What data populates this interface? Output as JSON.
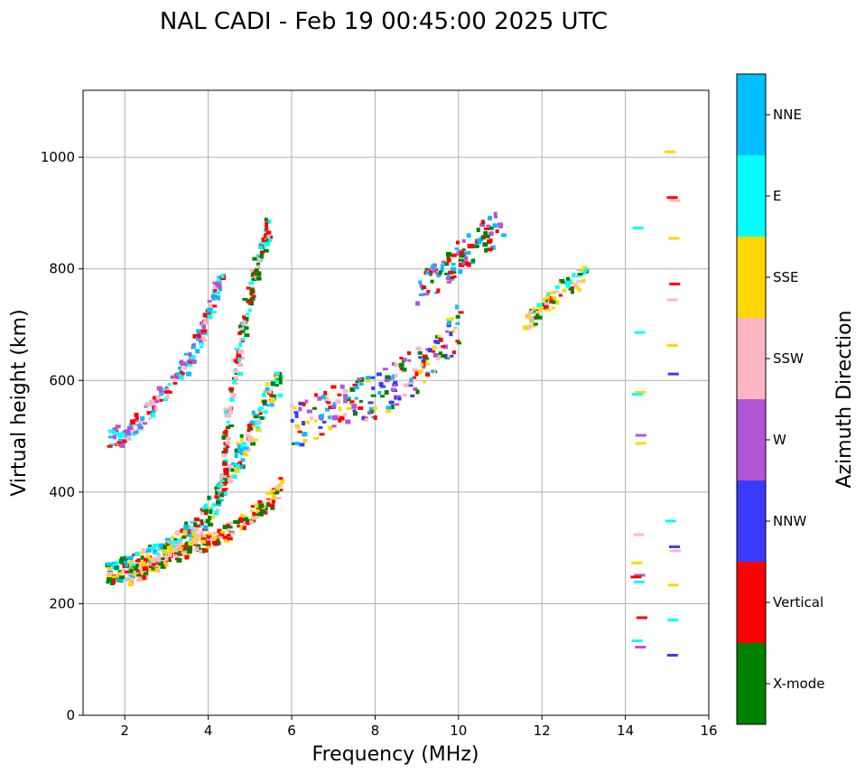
{
  "chart_data": {
    "type": "scatter",
    "title": "NAL CADI - Feb 19 00:45:00 2025 UTC",
    "xlabel": "Frequency (MHz)",
    "ylabel": "Virtual height (km)",
    "xlim": [
      1,
      16
    ],
    "ylim": [
      0,
      1120
    ],
    "xticks": [
      2,
      4,
      6,
      8,
      10,
      12,
      14,
      16
    ],
    "yticks": [
      0,
      200,
      400,
      600,
      800,
      1000
    ],
    "grid": true,
    "colorbar": {
      "label": "Azimuth Direction",
      "categories": [
        {
          "name": "X-mode",
          "color": "#008000"
        },
        {
          "name": "Vertical",
          "color": "#ff0000"
        },
        {
          "name": "NNW",
          "color": "#3a3aff"
        },
        {
          "name": "W",
          "color": "#b455d6"
        },
        {
          "name": "SSW",
          "color": "#ffb6c1"
        },
        {
          "name": "SSE",
          "color": "#ffd700"
        },
        {
          "name": "E",
          "color": "#00ffff"
        },
        {
          "name": "NNE",
          "color": "#00bfff"
        }
      ]
    },
    "traces": [
      {
        "name": "lower-trace-F-layer",
        "points": [
          [
            1.5,
            255
          ],
          [
            1.8,
            262
          ],
          [
            2.1,
            270
          ],
          [
            2.4,
            280
          ],
          [
            2.7,
            290
          ],
          [
            3.0,
            300
          ],
          [
            3.3,
            315
          ],
          [
            3.6,
            335
          ],
          [
            3.9,
            360
          ],
          [
            4.2,
            400
          ],
          [
            4.5,
            440
          ],
          [
            4.8,
            480
          ],
          [
            5.1,
            530
          ],
          [
            5.4,
            580
          ],
          [
            5.7,
            600
          ]
        ],
        "spread": 22,
        "colors": [
          "E",
          "NNE",
          "SSE",
          "Vertical",
          "X-mode",
          "SSW"
        ]
      },
      {
        "name": "lower-trace-xmode",
        "points": [
          [
            2.0,
            250
          ],
          [
            2.5,
            265
          ],
          [
            3.0,
            285
          ],
          [
            3.5,
            300
          ],
          [
            4.0,
            315
          ],
          [
            4.5,
            335
          ],
          [
            5.0,
            360
          ],
          [
            5.4,
            385
          ],
          [
            5.7,
            420
          ]
        ],
        "spread": 14,
        "colors": [
          "X-mode",
          "Vertical",
          "SSE",
          "SSW"
        ]
      },
      {
        "name": "second-hop-trace",
        "points": [
          [
            1.6,
            495
          ],
          [
            2.0,
            510
          ],
          [
            2.5,
            545
          ],
          [
            3.0,
            590
          ],
          [
            3.5,
            640
          ],
          [
            3.8,
            690
          ],
          [
            4.1,
            750
          ],
          [
            4.3,
            790
          ]
        ],
        "spread": 18,
        "colors": [
          "Vertical",
          "E",
          "SSW",
          "NNE",
          "W"
        ]
      },
      {
        "name": "steep-vertical-trace",
        "points": [
          [
            4.3,
            420
          ],
          [
            4.4,
            520
          ],
          [
            4.6,
            620
          ],
          [
            4.8,
            700
          ],
          [
            5.0,
            770
          ],
          [
            5.2,
            830
          ],
          [
            5.4,
            880
          ]
        ],
        "spread": 25,
        "colors": [
          "X-mode",
          "E",
          "SSW",
          "Vertical"
        ]
      },
      {
        "name": "middle-band",
        "points": [
          [
            6.0,
            520
          ],
          [
            6.5,
            535
          ],
          [
            7.0,
            560
          ],
          [
            7.5,
            570
          ],
          [
            8.0,
            575
          ],
          [
            8.5,
            600
          ],
          [
            9.0,
            625
          ],
          [
            9.5,
            660
          ],
          [
            10.0,
            700
          ]
        ],
        "spread": 40,
        "colors": [
          "NNW",
          "W",
          "SSE",
          "SSW",
          "X-mode",
          "NNE",
          "Vertical"
        ]
      },
      {
        "name": "upper-band",
        "points": [
          [
            9.0,
            760
          ],
          [
            9.5,
            790
          ],
          [
            10.0,
            830
          ],
          [
            10.5,
            860
          ],
          [
            11.0,
            880
          ]
        ],
        "spread": 30,
        "colors": [
          "X-mode",
          "NNE",
          "W",
          "Vertical"
        ]
      },
      {
        "name": "far-band",
        "points": [
          [
            11.5,
            700
          ],
          [
            12.0,
            735
          ],
          [
            12.5,
            770
          ],
          [
            13.0,
            790
          ]
        ],
        "spread": 18,
        "colors": [
          "Vertical",
          "X-mode",
          "SSW",
          "SSE",
          "E"
        ]
      },
      {
        "name": "column-14",
        "points": [
          [
            14.2,
            100
          ],
          [
            14.2,
            900
          ]
        ],
        "spread": 0,
        "colors": [
          "SSE",
          "E",
          "SSW",
          "Vertical",
          "W"
        ]
      },
      {
        "name": "column-15",
        "points": [
          [
            15.0,
            95
          ],
          [
            15.0,
            1015
          ]
        ],
        "spread": 0,
        "colors": [
          "SSE",
          "Vertical",
          "NNW",
          "E",
          "SSW"
        ]
      }
    ]
  }
}
